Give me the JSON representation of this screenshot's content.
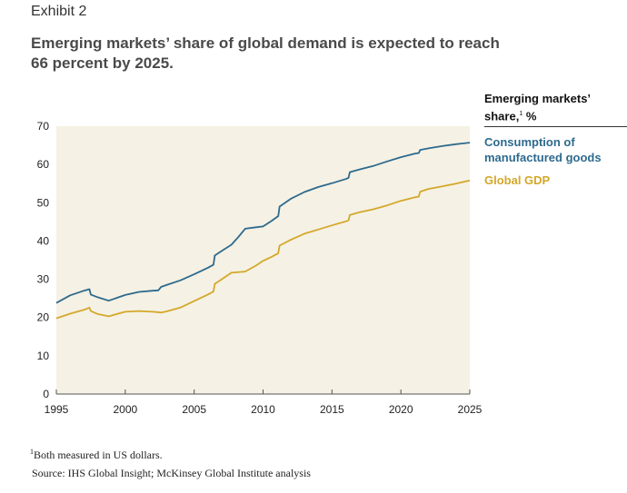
{
  "header": {
    "exhibit": "Exhibit 2",
    "title": "Emerging markets’ share of global demand is expected to reach 66 percent by 2025."
  },
  "legend": {
    "title": "Emerging markets’ share,",
    "title_sup": "1",
    "title_unit": "%"
  },
  "chart_data": {
    "type": "line",
    "x_ticks": [
      1995,
      2000,
      2005,
      2010,
      2015,
      2020,
      2025
    ],
    "y_ticks": [
      0,
      10,
      20,
      30,
      40,
      50,
      60,
      70
    ],
    "xlim": [
      1995,
      2025
    ],
    "ylim": [
      0,
      70
    ],
    "grid": false,
    "legend_placement": "right",
    "series": [
      {
        "name": "Consumption of manufactured goods",
        "color": "#2d6a8e",
        "points": [
          [
            1995,
            23.8
          ],
          [
            1996,
            25.8
          ],
          [
            1997,
            27.0
          ],
          [
            1997.4,
            27.4
          ],
          [
            1997.5,
            26.0
          ],
          [
            1998,
            25.3
          ],
          [
            1998.8,
            24.4
          ],
          [
            2000,
            25.9
          ],
          [
            2001,
            26.7
          ],
          [
            2002,
            27.0
          ],
          [
            2002.4,
            27.1
          ],
          [
            2002.6,
            28.0
          ],
          [
            2003,
            28.5
          ],
          [
            2004,
            29.7
          ],
          [
            2005,
            31.3
          ],
          [
            2006,
            33.0
          ],
          [
            2006.4,
            33.8
          ],
          [
            2006.5,
            36.2
          ],
          [
            2007,
            37.4
          ],
          [
            2007.7,
            39.0
          ],
          [
            2008.2,
            41.0
          ],
          [
            2008.7,
            43.2
          ],
          [
            2009.5,
            43.6
          ],
          [
            2010,
            43.8
          ],
          [
            2010.6,
            45.2
          ],
          [
            2011.1,
            46.5
          ],
          [
            2011.2,
            49.0
          ],
          [
            2012,
            51.0
          ],
          [
            2013,
            52.8
          ],
          [
            2014,
            54.1
          ],
          [
            2015,
            55.1
          ],
          [
            2016,
            56.2
          ],
          [
            2016.2,
            56.5
          ],
          [
            2016.3,
            58.0
          ],
          [
            2017,
            58.7
          ],
          [
            2018,
            59.6
          ],
          [
            2019,
            60.8
          ],
          [
            2020,
            61.9
          ],
          [
            2021,
            62.8
          ],
          [
            2021.3,
            63.0
          ],
          [
            2021.4,
            63.8
          ],
          [
            2022,
            64.2
          ],
          [
            2023,
            64.8
          ],
          [
            2024,
            65.3
          ],
          [
            2025,
            65.7
          ]
        ]
      },
      {
        "name": "Global GDP",
        "color": "#d4a82a",
        "points": [
          [
            1995,
            19.8
          ],
          [
            1996,
            21.0
          ],
          [
            1997,
            22.0
          ],
          [
            1997.4,
            22.6
          ],
          [
            1997.5,
            21.7
          ],
          [
            1998,
            20.9
          ],
          [
            1998.8,
            20.3
          ],
          [
            2000,
            21.5
          ],
          [
            2001,
            21.7
          ],
          [
            2002,
            21.5
          ],
          [
            2002.6,
            21.3
          ],
          [
            2003,
            21.6
          ],
          [
            2004,
            22.6
          ],
          [
            2005,
            24.3
          ],
          [
            2006,
            26.0
          ],
          [
            2006.4,
            26.8
          ],
          [
            2006.5,
            28.8
          ],
          [
            2007,
            30.0
          ],
          [
            2007.7,
            31.7
          ],
          [
            2008.7,
            32.0
          ],
          [
            2009.5,
            33.6
          ],
          [
            2010,
            34.8
          ],
          [
            2010.6,
            35.8
          ],
          [
            2011.1,
            36.8
          ],
          [
            2011.2,
            38.8
          ],
          [
            2012,
            40.3
          ],
          [
            2013,
            41.9
          ],
          [
            2014,
            43.0
          ],
          [
            2015,
            44.1
          ],
          [
            2016,
            45.1
          ],
          [
            2016.2,
            45.4
          ],
          [
            2016.3,
            46.8
          ],
          [
            2017,
            47.5
          ],
          [
            2018,
            48.3
          ],
          [
            2019,
            49.3
          ],
          [
            2020,
            50.5
          ],
          [
            2021,
            51.4
          ],
          [
            2021.3,
            51.6
          ],
          [
            2021.4,
            52.9
          ],
          [
            2022,
            53.6
          ],
          [
            2023,
            54.3
          ],
          [
            2024,
            55.0
          ],
          [
            2025,
            55.8
          ]
        ]
      }
    ]
  },
  "footer": {
    "footnote_sup": "1",
    "footnote": "Both measured in US dollars.",
    "source": "Source: IHS Global Insight; McKinsey Global Institute analysis"
  },
  "colors": {
    "plot_background": "#f5f1e4",
    "axis": "#555555"
  }
}
